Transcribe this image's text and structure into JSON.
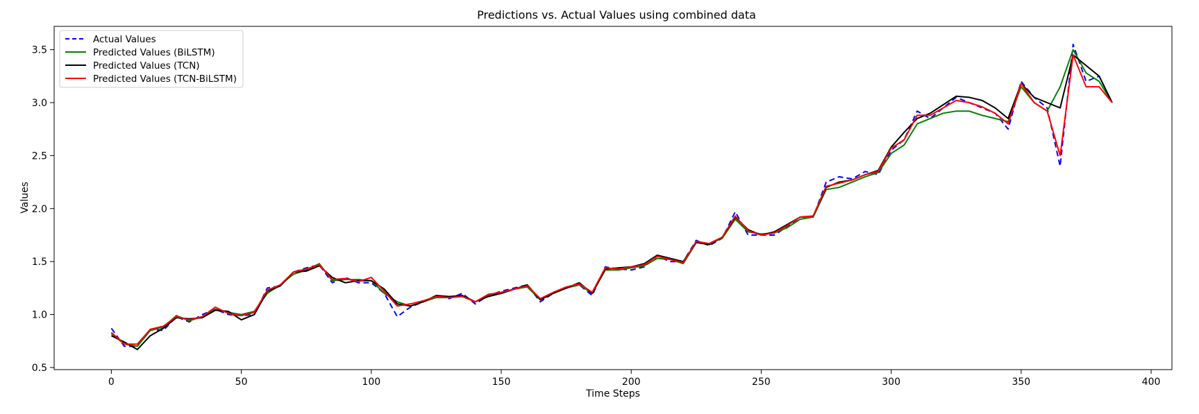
{
  "chart_data": {
    "type": "line",
    "title": "Predictions vs. Actual Values using combined data",
    "xlabel": "Time Steps",
    "ylabel": "Values",
    "xlim": [
      -22,
      408
    ],
    "ylim": [
      0.48,
      3.72
    ],
    "x_ticks": [
      0,
      50,
      100,
      150,
      200,
      250,
      300,
      350,
      400
    ],
    "y_ticks": [
      0.5,
      1.0,
      1.5,
      2.0,
      2.5,
      3.0,
      3.5
    ],
    "x_tick_labels": [
      "0",
      "50",
      "100",
      "150",
      "200",
      "250",
      "300",
      "350",
      "400"
    ],
    "y_tick_labels": [
      "0.5",
      "1.0",
      "1.5",
      "2.0",
      "2.5",
      "3.0",
      "3.5"
    ],
    "grid": false,
    "legend_position": "upper-left",
    "x": [
      0,
      5,
      10,
      15,
      20,
      25,
      30,
      35,
      40,
      45,
      50,
      55,
      60,
      65,
      70,
      75,
      80,
      85,
      90,
      95,
      100,
      105,
      110,
      115,
      120,
      125,
      130,
      135,
      140,
      145,
      150,
      155,
      160,
      165,
      170,
      175,
      180,
      185,
      190,
      195,
      200,
      205,
      210,
      215,
      220,
      225,
      230,
      235,
      240,
      245,
      250,
      255,
      260,
      265,
      270,
      275,
      280,
      285,
      290,
      295,
      300,
      305,
      310,
      315,
      320,
      325,
      330,
      335,
      340,
      345,
      350,
      355,
      360,
      365,
      370,
      375,
      380,
      385
    ],
    "series": [
      {
        "name": "Actual Values",
        "color": "#0000ff",
        "dash": "dashed",
        "values": [
          0.87,
          0.7,
          0.7,
          0.86,
          0.85,
          0.98,
          0.93,
          1.0,
          1.05,
          1.0,
          0.99,
          1.0,
          1.25,
          1.27,
          1.4,
          1.44,
          1.47,
          1.3,
          1.35,
          1.3,
          1.3,
          1.2,
          0.98,
          1.07,
          1.12,
          1.18,
          1.15,
          1.2,
          1.1,
          1.18,
          1.22,
          1.25,
          1.28,
          1.12,
          1.2,
          1.25,
          1.28,
          1.18,
          1.45,
          1.43,
          1.42,
          1.45,
          1.55,
          1.5,
          1.5,
          1.7,
          1.65,
          1.72,
          1.97,
          1.75,
          1.75,
          1.75,
          1.83,
          1.92,
          1.92,
          2.25,
          2.3,
          2.28,
          2.35,
          2.32,
          2.55,
          2.65,
          2.92,
          2.85,
          2.95,
          3.05,
          3.0,
          2.95,
          2.9,
          2.75,
          3.2,
          3.05,
          2.95,
          2.4,
          3.55,
          3.2,
          3.25,
          3.0
        ]
      },
      {
        "name": "Predicted Values (BiLSTM)",
        "color": "#008000",
        "dash": "solid",
        "values": [
          0.82,
          0.72,
          0.7,
          0.85,
          0.88,
          0.99,
          0.94,
          0.98,
          1.05,
          1.02,
          1.0,
          1.03,
          1.2,
          1.28,
          1.38,
          1.42,
          1.48,
          1.32,
          1.33,
          1.33,
          1.32,
          1.2,
          1.12,
          1.08,
          1.12,
          1.16,
          1.16,
          1.18,
          1.12,
          1.18,
          1.2,
          1.24,
          1.26,
          1.14,
          1.2,
          1.25,
          1.28,
          1.2,
          1.42,
          1.42,
          1.44,
          1.46,
          1.53,
          1.52,
          1.48,
          1.68,
          1.67,
          1.72,
          1.9,
          1.78,
          1.76,
          1.77,
          1.82,
          1.9,
          1.92,
          2.18,
          2.2,
          2.25,
          2.3,
          2.34,
          2.52,
          2.6,
          2.8,
          2.85,
          2.9,
          2.92,
          2.92,
          2.88,
          2.85,
          2.82,
          3.15,
          3.0,
          2.92,
          3.15,
          3.5,
          3.28,
          3.2,
          3.0
        ]
      },
      {
        "name": "Predicted Values (TCN)",
        "color": "#000000",
        "dash": "solid",
        "values": [
          0.8,
          0.74,
          0.67,
          0.8,
          0.87,
          0.97,
          0.96,
          0.97,
          1.04,
          1.03,
          0.95,
          1.0,
          1.22,
          1.27,
          1.4,
          1.41,
          1.46,
          1.35,
          1.3,
          1.32,
          1.32,
          1.24,
          1.1,
          1.08,
          1.12,
          1.18,
          1.17,
          1.18,
          1.12,
          1.17,
          1.2,
          1.24,
          1.28,
          1.14,
          1.2,
          1.25,
          1.3,
          1.2,
          1.43,
          1.44,
          1.45,
          1.48,
          1.56,
          1.53,
          1.5,
          1.68,
          1.66,
          1.73,
          1.92,
          1.8,
          1.75,
          1.78,
          1.85,
          1.92,
          1.93,
          2.2,
          2.25,
          2.27,
          2.32,
          2.36,
          2.58,
          2.72,
          2.85,
          2.9,
          2.98,
          3.06,
          3.05,
          3.02,
          2.95,
          2.85,
          3.18,
          3.05,
          3.0,
          2.95,
          3.45,
          3.35,
          3.25,
          3.0
        ]
      },
      {
        "name": "Predicted Values (TCN-BiLSTM)",
        "color": "#ff0000",
        "dash": "solid",
        "values": [
          0.83,
          0.72,
          0.72,
          0.86,
          0.89,
          0.98,
          0.95,
          0.98,
          1.07,
          1.01,
          0.99,
          1.02,
          1.23,
          1.28,
          1.4,
          1.43,
          1.47,
          1.33,
          1.34,
          1.31,
          1.35,
          1.22,
          1.08,
          1.1,
          1.13,
          1.17,
          1.16,
          1.17,
          1.12,
          1.19,
          1.21,
          1.24,
          1.27,
          1.15,
          1.21,
          1.26,
          1.29,
          1.21,
          1.44,
          1.43,
          1.45,
          1.47,
          1.55,
          1.52,
          1.49,
          1.69,
          1.67,
          1.73,
          1.93,
          1.79,
          1.75,
          1.77,
          1.84,
          1.92,
          1.93,
          2.21,
          2.24,
          2.27,
          2.32,
          2.35,
          2.57,
          2.65,
          2.88,
          2.88,
          2.95,
          3.02,
          3.0,
          2.96,
          2.9,
          2.8,
          3.18,
          3.0,
          2.92,
          2.5,
          3.45,
          3.15,
          3.15,
          3.0
        ]
      }
    ]
  }
}
